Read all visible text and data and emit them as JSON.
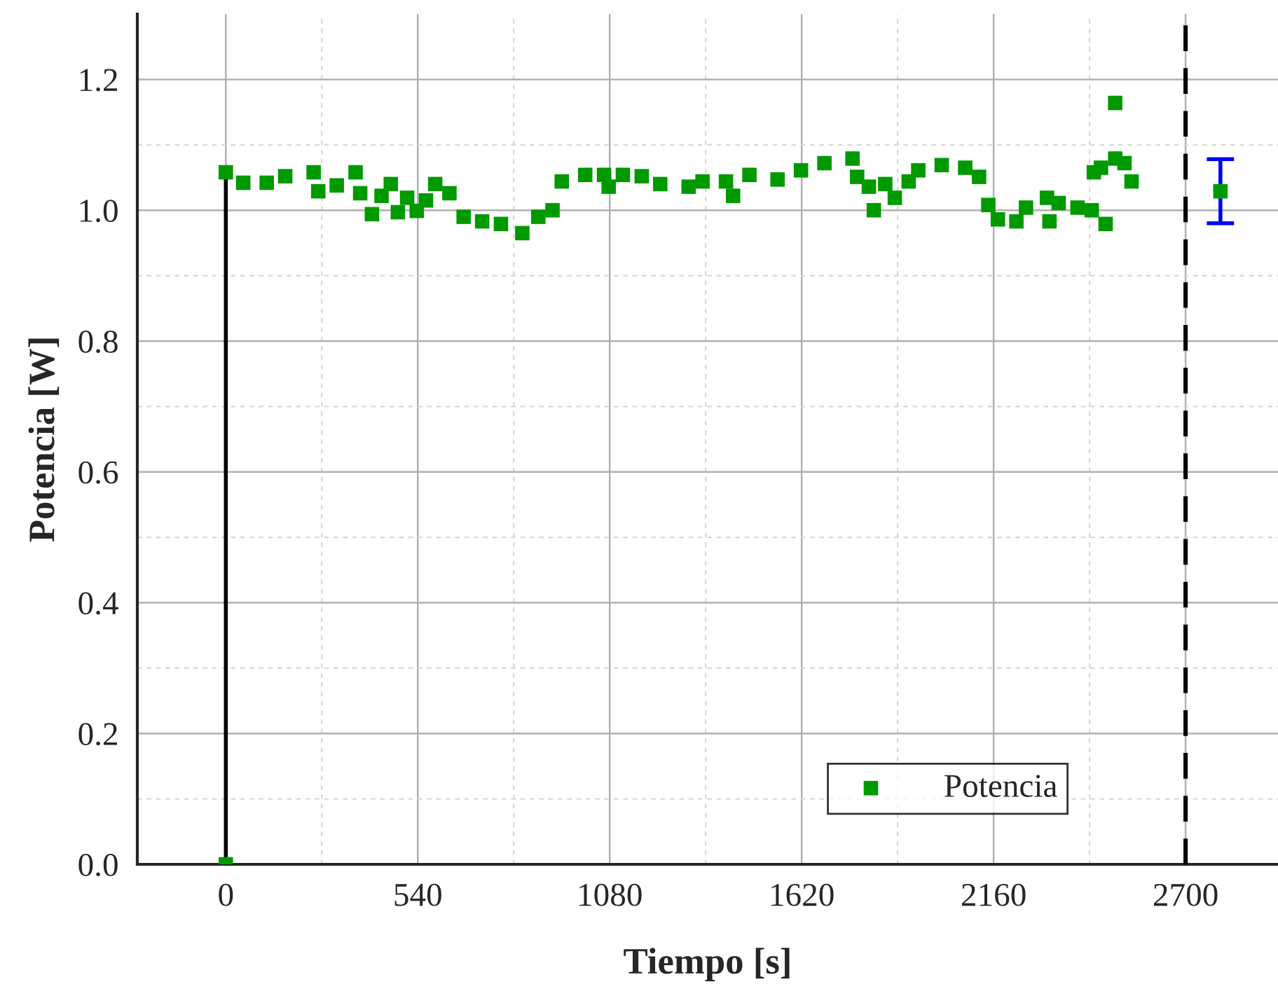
{
  "chart_data": {
    "type": "scatter",
    "xlabel": "Tiempo [s]",
    "ylabel": "Potencia [W]",
    "xlim": [
      -249,
      2960
    ],
    "ylim": [
      0,
      1.3
    ],
    "xticks": [
      0,
      540,
      1080,
      1620,
      2160,
      2700
    ],
    "yticks": [
      {
        "value": 0,
        "label": "0.0"
      },
      {
        "value": 0.2,
        "label": "0.2"
      },
      {
        "value": 0.4,
        "label": "0.4"
      },
      {
        "value": 0.6,
        "label": "0.6"
      },
      {
        "value": 0.8,
        "label": "0.8"
      },
      {
        "value": 1.0,
        "label": "1.0"
      },
      {
        "value": 1.2,
        "label": "1.2"
      }
    ],
    "grid": true,
    "legend": "bottom right",
    "marker": "square",
    "series": [
      {
        "name": "Potencia",
        "color": "#009900",
        "x": [
          0,
          0,
          49,
          115,
          167,
          247,
          260,
          312,
          365,
          378,
          411,
          438,
          464,
          484,
          510,
          537,
          563,
          589,
          629,
          669,
          721,
          774,
          834,
          879,
          919,
          945,
          1011,
          1064,
          1077,
          1117,
          1170,
          1222,
          1302,
          1341,
          1407,
          1427,
          1473,
          1552,
          1618,
          1684,
          1763,
          1776,
          1809,
          1823,
          1855,
          1882,
          1921,
          1948,
          2014,
          2080,
          2119,
          2145,
          2172,
          2224,
          2251,
          2310,
          2317,
          2343,
          2396,
          2436,
          2442,
          2462,
          2475,
          2502,
          2502,
          2528,
          2548
        ],
        "values": [
          0,
          1.058,
          1.042,
          1.042,
          1.052,
          1.058,
          1.029,
          1.038,
          1.058,
          1.026,
          0.994,
          1.022,
          1.04,
          0.997,
          1.019,
          0.999,
          1.015,
          1.04,
          1.026,
          0.99,
          0.983,
          0.979,
          0.965,
          0.99,
          1.0,
          1.044,
          1.054,
          1.054,
          1.036,
          1.054,
          1.052,
          1.04,
          1.036,
          1.044,
          1.044,
          1.022,
          1.054,
          1.047,
          1.061,
          1.072,
          1.079,
          1.051,
          1.036,
          1.0,
          1.04,
          1.019,
          1.044,
          1.061,
          1.069,
          1.065,
          1.051,
          1.008,
          0.986,
          0.983,
          1.004,
          1.019,
          0.983,
          1.011,
          1.004,
          1.0,
          1.058,
          1.065,
          0.979,
          1.164,
          1.079,
          1.072,
          1.044
        ]
      },
      {
        "type": "line",
        "color": "#000000",
        "marker": "none",
        "x": [
          0,
          0
        ],
        "values": [
          0,
          1.058
        ]
      },
      {
        "color": "#009900",
        "x": [
          2798
        ],
        "values": [
          1.029
        ],
        "errors": [
          0.049
        ]
      }
    ],
    "ref_lines": [
      {
        "axis": "x",
        "value": 2700,
        "color": "#000000",
        "line_style": "dashed"
      }
    ]
  }
}
